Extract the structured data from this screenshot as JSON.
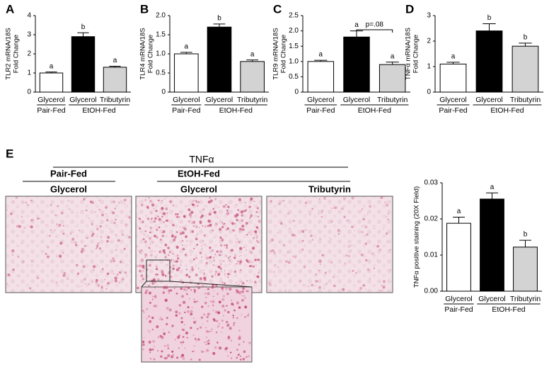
{
  "chart_data": [
    {
      "type": "bar",
      "panel": "A",
      "y_label": [
        "TLR2 mRNA/18S",
        "Fold Change"
      ],
      "groups": [
        {
          "name": "Pair-Fed",
          "categories": [
            "Glycerol"
          ]
        },
        {
          "name": "EtOH-Fed",
          "categories": [
            "Glycerol",
            "Tributyrin"
          ]
        }
      ],
      "values": [
        1.0,
        2.9,
        1.3
      ],
      "errors": [
        0.05,
        0.2,
        0.05
      ],
      "letters": [
        "a",
        "b",
        "a"
      ],
      "colors": [
        "#ffffff",
        "#000000",
        "#d3d3d3"
      ],
      "ylim": [
        0,
        4
      ],
      "yticks": [
        0,
        1,
        2,
        3,
        4
      ]
    },
    {
      "type": "bar",
      "panel": "B",
      "y_label": [
        "TLR4 mRNA/18S",
        "Fold Change"
      ],
      "groups": [
        {
          "name": "Pair-Fed",
          "categories": [
            "Glycerol"
          ]
        },
        {
          "name": "EtOH-Fed",
          "categories": [
            "Glycerol",
            "Tributyrin"
          ]
        }
      ],
      "values": [
        1.0,
        1.7,
        0.8
      ],
      "errors": [
        0.04,
        0.08,
        0.04
      ],
      "letters": [
        "a",
        "b",
        "a"
      ],
      "colors": [
        "#ffffff",
        "#000000",
        "#d3d3d3"
      ],
      "ylim": [
        0,
        2
      ],
      "yticks": [
        0,
        0.5,
        {
          "value": 1,
          "label": "1.0"
        },
        1.5,
        {
          "value": 2,
          "label": "2.0"
        }
      ]
    },
    {
      "type": "bar",
      "panel": "C",
      "y_label": [
        "TLR9 mRNA/18S",
        "Fold Change"
      ],
      "groups": [
        {
          "name": "Pair-Fed",
          "categories": [
            "Glycerol"
          ]
        },
        {
          "name": "EtOH-Fed",
          "categories": [
            "Glycerol",
            "Tributyrin"
          ]
        }
      ],
      "values": [
        1.0,
        1.8,
        0.9
      ],
      "errors": [
        0.04,
        0.2,
        0.08
      ],
      "letters": [
        "a",
        "a",
        "a"
      ],
      "annotation": "p=.08",
      "colors": [
        "#ffffff",
        "#000000",
        "#d3d3d3"
      ],
      "ylim": [
        0,
        2.5
      ],
      "yticks": [
        0,
        0.5,
        {
          "value": 1,
          "label": "1.0"
        },
        1.5,
        {
          "value": 2,
          "label": "2.0"
        },
        2.5
      ]
    },
    {
      "type": "bar",
      "panel": "D",
      "y_label": [
        "TNFα mRNA/18S",
        "Fold Change"
      ],
      "groups": [
        {
          "name": "Pair-Fed",
          "categories": [
            "Glycerol"
          ]
        },
        {
          "name": "EtOH-Fed",
          "categories": [
            "Glycerol",
            "Tributyrin"
          ]
        }
      ],
      "values": [
        1.1,
        2.4,
        1.8
      ],
      "errors": [
        0.07,
        0.28,
        0.12
      ],
      "letters": [
        "a",
        "b",
        "b"
      ],
      "colors": [
        "#ffffff",
        "#000000",
        "#d3d3d3"
      ],
      "ylim": [
        0,
        3
      ],
      "yticks": [
        0,
        1,
        2,
        3
      ]
    },
    {
      "type": "bar",
      "y_label": [
        "TNFα positive staining (20X Field)"
      ],
      "groups": [
        {
          "name": "Pair-Fed",
          "categories": [
            "Glycerol"
          ]
        },
        {
          "name": "EtOH-Fed",
          "categories": [
            "Glycerol",
            "Tributyrin"
          ]
        }
      ],
      "values": [
        0.0188,
        0.0255,
        0.0122
      ],
      "errors": [
        0.0017,
        0.0017,
        0.0019
      ],
      "letters": [
        "a",
        "a",
        "b"
      ],
      "colors": [
        "#ffffff",
        "#000000",
        "#d3d3d3"
      ],
      "ylim": [
        0,
        0.03
      ],
      "yticks": [
        {
          "value": 0,
          "label": "0.00"
        },
        0.01,
        0.02,
        0.03
      ]
    }
  ],
  "panel_e": {
    "label": "E",
    "title": "TNFα",
    "groups": [
      {
        "name": "Pair-Fed",
        "images": [
          "Glycerol"
        ]
      },
      {
        "name": "EtOH-Fed",
        "images": [
          "Glycerol",
          "Tributyrin"
        ]
      }
    ]
  }
}
